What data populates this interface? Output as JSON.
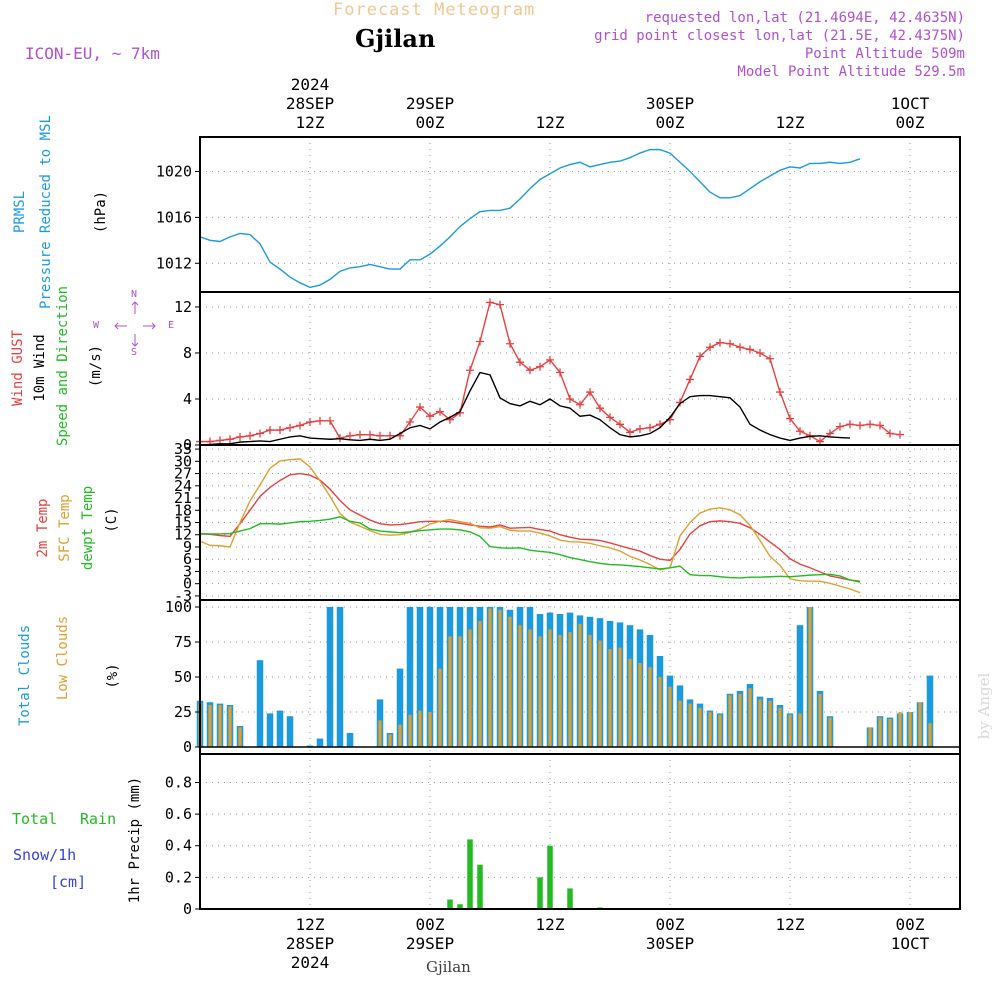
{
  "header": {
    "forecast_title": "Forecast Meteogram",
    "location": "Gjilan",
    "model": "ICON-EU, ~ 7km",
    "requested": "requested lon,lat (21.4694E, 42.4635N)",
    "grid_point": "grid point closest lon,lat (21.5E, 42.4375N)",
    "point_altitude": "Point Altitude 509m",
    "model_altitude": "Model Point Altitude 529.5m",
    "footer_location": "Gjilan",
    "watermark": "by Angel",
    "colors": {
      "title": "#f0c890",
      "location": "#000000",
      "info": "#b050d0",
      "watermark": "#d8d8d8"
    }
  },
  "time_axis": {
    "top_year": "2024",
    "ticks": [
      {
        "hour": 12,
        "top": [
          "28SEP",
          "12Z"
        ],
        "bottom": [
          "12Z",
          "28SEP",
          "2024"
        ]
      },
      {
        "hour": 24,
        "top": [
          "29SEP",
          "00Z"
        ],
        "bottom": [
          "00Z",
          "29SEP"
        ]
      },
      {
        "hour": 36,
        "top": [
          "12Z"
        ],
        "bottom": [
          "12Z"
        ]
      },
      {
        "hour": 48,
        "top": [
          "30SEP",
          "00Z"
        ],
        "bottom": [
          "00Z",
          "30SEP"
        ]
      },
      {
        "hour": 60,
        "top": [
          "12Z"
        ],
        "bottom": [
          "12Z"
        ]
      },
      {
        "hour": 72,
        "top": [
          "1OCT",
          "00Z"
        ],
        "bottom": [
          "00Z",
          "1OCT"
        ]
      }
    ],
    "xlim": [
      1,
      77
    ]
  },
  "panel_labels": {
    "pressure": [
      {
        "text": "PRMSL",
        "color": "#1a9be0"
      },
      {
        "text": "Pressure Reduced to MSL",
        "color": "#1a9be0"
      },
      {
        "text": "(hPa)",
        "color": "#000000"
      }
    ],
    "wind": [
      {
        "text": "Wind GUST",
        "color": "#e84040"
      },
      {
        "text": "10m Wind",
        "color": "#000000"
      },
      {
        "text": "Speed and Direction",
        "color": "#22bb22"
      },
      {
        "text": "(m/s)",
        "color": "#000000"
      }
    ],
    "compass": {
      "n": "N",
      "s": "S",
      "w": "W",
      "e": "E",
      "color": "#b050d0"
    },
    "temp": [
      {
        "text": "2m Temp",
        "color": "#e84040"
      },
      {
        "text": "SFC Temp",
        "color": "#e0a030"
      },
      {
        "text": "dewpt Temp",
        "color": "#22bb22"
      },
      {
        "text": "(C)",
        "color": "#000000"
      }
    ],
    "clouds": [
      {
        "text": "Total Clouds",
        "color": "#1a9be0"
      },
      {
        "text": "Low Clouds",
        "color": "#e0a030"
      },
      {
        "text": "(%)",
        "color": "#000000"
      }
    ],
    "precip": {
      "total": "Total",
      "rain": "Rain",
      "snow": "Snow/1h",
      "cm": "[cm]",
      "axis": "1hr Precip (mm)",
      "rain_color": "#22bb22",
      "snow_color": "#3344dd"
    }
  },
  "chart_data": [
    {
      "type": "line",
      "id": "pressure",
      "ylim": [
        1009.5,
        1023
      ],
      "yticks": [
        1012,
        1016,
        1020
      ],
      "grid": true,
      "series": [
        {
          "color": "#1a9be0",
          "values": [
            1014.3,
            1014.0,
            1013.9,
            1014.3,
            1014.6,
            1014.5,
            1013.7,
            1012.1,
            1011.5,
            1010.8,
            1010.3,
            1009.9,
            1010.1,
            1010.6,
            1011.3,
            1011.6,
            1011.7,
            1011.9,
            1011.7,
            1011.5,
            1011.5,
            1012.3,
            1012.3,
            1012.8,
            1013.5,
            1014.3,
            1015.2,
            1015.9,
            1016.5,
            1016.6,
            1016.6,
            1016.8,
            1017.6,
            1018.5,
            1019.3,
            1019.8,
            1020.3,
            1020.6,
            1020.8,
            1020.4,
            1020.6,
            1020.8,
            1020.9,
            1021.2,
            1021.6,
            1021.9,
            1021.9,
            1021.6,
            1020.8,
            1020.0,
            1019.1,
            1018.2,
            1017.7,
            1017.7,
            1017.9,
            1018.5,
            1019.1,
            1019.6,
            1020.1,
            1020.4,
            1020.3,
            1020.7,
            1020.7,
            1020.8,
            1020.7,
            1020.8,
            1021.1
          ]
        }
      ]
    },
    {
      "type": "line",
      "id": "wind",
      "ylim": [
        0,
        13.3
      ],
      "yticks": [
        0,
        4,
        8,
        12
      ],
      "grid": true,
      "series": [
        {
          "color": "#e84040",
          "markers": "plus",
          "values": [
            0.3,
            0.3,
            0.4,
            0.5,
            0.7,
            0.8,
            1.0,
            1.3,
            1.3,
            1.5,
            1.7,
            2.0,
            2.1,
            2.1,
            0.6,
            0.8,
            0.9,
            0.9,
            0.8,
            0.8,
            0.8,
            2.0,
            3.3,
            2.5,
            2.9,
            2.2,
            2.8,
            6.5,
            9.0,
            12.4,
            12.2,
            8.8,
            7.2,
            6.5,
            6.8,
            7.4,
            6.3,
            4.0,
            3.5,
            4.6,
            3.2,
            2.4,
            1.8,
            1.1,
            1.4,
            1.5,
            1.8,
            2.2,
            3.7,
            5.7,
            7.7,
            8.5,
            8.9,
            8.8,
            8.5,
            8.3,
            8.0,
            7.5,
            4.6,
            2.3,
            1.2,
            0.8,
            0.3,
            1.0,
            1.6,
            1.8,
            1.7,
            1.8,
            1.7,
            1.0,
            0.9
          ]
        },
        {
          "color": "#000000",
          "markers": "none",
          "values": [
            0.0,
            0.05,
            0.1,
            0.1,
            0.25,
            0.3,
            0.35,
            0.3,
            0.5,
            0.7,
            0.8,
            0.6,
            0.55,
            0.5,
            0.55,
            0.45,
            0.4,
            0.5,
            0.4,
            0.5,
            1.0,
            1.5,
            1.7,
            1.4,
            2.0,
            2.4,
            2.9,
            4.7,
            6.3,
            6.1,
            4.1,
            3.6,
            3.4,
            3.8,
            3.5,
            4.0,
            3.4,
            3.2,
            2.5,
            2.6,
            2.2,
            1.5,
            0.9,
            0.7,
            0.8,
            1.0,
            1.5,
            2.4,
            3.6,
            4.2,
            4.3,
            4.3,
            4.2,
            4.1,
            3.3,
            1.8,
            1.3,
            0.9,
            0.6,
            0.4,
            0.6,
            0.75,
            0.8,
            0.7,
            0.65,
            0.6
          ]
        }
      ]
    },
    {
      "type": "line",
      "id": "temperature",
      "ylim": [
        -4,
        34
      ],
      "yticks": [
        -3,
        0,
        3,
        6,
        9,
        12,
        15,
        18,
        21,
        24,
        27,
        30,
        33
      ],
      "grid": true,
      "series": [
        {
          "color": "#e84040",
          "values": [
            12.2,
            12.1,
            11.8,
            11.6,
            14.7,
            18.0,
            21.4,
            23.6,
            25.3,
            26.7,
            27.0,
            26.6,
            25.4,
            23.2,
            20.4,
            18.1,
            16.8,
            15.6,
            14.7,
            14.4,
            14.5,
            14.8,
            15.2,
            15.3,
            15.3,
            15.2,
            14.8,
            14.4,
            14.1,
            13.9,
            14.4,
            13.6,
            13.7,
            13.8,
            13.3,
            12.9,
            12.0,
            11.4,
            10.9,
            10.8,
            10.6,
            10.0,
            9.3,
            8.6,
            8.0,
            6.9,
            6.0,
            5.7,
            8.4,
            12.2,
            14.2,
            15.2,
            15.4,
            15.2,
            14.8,
            13.7,
            12.1,
            10.2,
            8.4,
            6.1,
            4.8,
            3.9,
            2.9,
            1.9,
            1.4,
            0.9,
            0.6
          ]
        },
        {
          "color": "#e0a030",
          "values": [
            10.4,
            9.4,
            9.3,
            9.0,
            15.0,
            20.3,
            24.2,
            28.3,
            30.1,
            30.4,
            30.6,
            28.6,
            25.2,
            21.4,
            17.2,
            15.1,
            14.1,
            13.0,
            12.1,
            11.9,
            12.0,
            12.6,
            13.4,
            14.6,
            15.3,
            15.7,
            15.2,
            14.8,
            13.7,
            13.6,
            14.0,
            13.1,
            12.9,
            12.9,
            12.4,
            11.7,
            10.7,
            10.3,
            10.2,
            9.9,
            9.3,
            8.8,
            8.0,
            6.7,
            5.8,
            4.7,
            3.4,
            3.9,
            11.7,
            15.0,
            17.3,
            18.3,
            18.6,
            18.1,
            16.9,
            14.3,
            10.6,
            6.7,
            4.5,
            1.2,
            0.7,
            0.6,
            0.6,
            0.1,
            -0.6,
            -1.3,
            -2.2
          ]
        },
        {
          "color": "#22bb22",
          "values": [
            12.3,
            12.2,
            12.2,
            12.3,
            12.9,
            13.5,
            14.7,
            14.7,
            14.6,
            14.9,
            15.2,
            15.3,
            15.5,
            15.8,
            16.4,
            15.3,
            14.9,
            13.4,
            12.9,
            12.7,
            12.5,
            12.7,
            13.0,
            13.2,
            13.4,
            13.4,
            13.2,
            12.7,
            11.6,
            9.1,
            8.8,
            8.7,
            8.8,
            8.2,
            7.9,
            7.7,
            7.1,
            6.4,
            5.9,
            5.4,
            5.0,
            4.7,
            4.6,
            4.4,
            4.2,
            3.9,
            3.6,
            3.9,
            4.3,
            2.2,
            2.0,
            2.0,
            1.7,
            1.5,
            1.4,
            1.6,
            1.6,
            1.7,
            1.8,
            1.7,
            1.9,
            2.1,
            2.2,
            2.3,
            1.9,
            0.9,
            0.4
          ]
        }
      ]
    },
    {
      "type": "bar",
      "id": "clouds",
      "ylim": [
        -5,
        105
      ],
      "yticks": [
        0,
        25,
        50,
        75,
        100
      ],
      "grid": true,
      "series": [
        {
          "name": "Total Clouds",
          "color": "#1a9be0",
          "values": [
            33,
            32,
            31,
            30,
            15,
            0,
            62,
            24,
            26,
            22,
            0,
            1,
            6,
            100,
            100,
            10,
            0,
            0,
            34,
            10,
            56,
            100,
            100,
            100,
            100,
            100,
            100,
            100,
            100,
            100,
            100,
            98,
            100,
            100,
            95,
            96,
            95,
            96,
            94,
            93,
            92,
            90,
            89,
            87,
            84,
            80,
            65,
            51,
            44,
            34,
            31,
            26,
            24,
            38,
            40,
            45,
            36,
            35,
            30,
            24,
            87,
            100,
            40,
            22,
            0,
            0,
            0,
            14,
            22,
            21,
            24,
            25,
            32,
            51
          ]
        },
        {
          "name": "Low Clouds",
          "color": "#e0a030",
          "values": [
            31,
            30,
            30,
            29,
            14,
            0,
            0,
            0,
            0,
            0,
            0,
            0,
            0,
            0,
            0,
            0,
            0,
            0,
            19,
            9,
            16,
            23,
            26,
            25,
            56,
            79,
            79,
            84,
            90,
            99,
            98,
            93,
            87,
            84,
            79,
            84,
            80,
            82,
            88,
            80,
            76,
            70,
            71,
            63,
            60,
            57,
            50,
            43,
            33,
            31,
            28,
            25,
            23,
            37,
            38,
            42,
            34,
            33,
            28,
            23,
            24,
            100,
            38,
            21,
            0,
            0,
            0,
            14,
            21,
            20,
            25,
            25,
            32,
            17
          ]
        }
      ]
    },
    {
      "type": "bar",
      "id": "precip",
      "ylim": [
        0,
        0.98
      ],
      "yticks": [
        0,
        0.2,
        0.4,
        0.6,
        0.8
      ],
      "grid": true,
      "series": [
        {
          "color": "#22bb22",
          "values": [
            0,
            0,
            0,
            0,
            0,
            0,
            0,
            0,
            0,
            0,
            0,
            0,
            0,
            0,
            0,
            0,
            0,
            0,
            0,
            0,
            0,
            0,
            0,
            0,
            0,
            0.06,
            0.03,
            0.44,
            0.28,
            0,
            0,
            0,
            0,
            0,
            0.2,
            0.4,
            0,
            0.13,
            0,
            0,
            0.01,
            0,
            0,
            0,
            0,
            0,
            0,
            0,
            0,
            0,
            0,
            0,
            0,
            0,
            0,
            0,
            0,
            0,
            0,
            0,
            0,
            0,
            0,
            0,
            0,
            0,
            0,
            0,
            0,
            0,
            0,
            0,
            0,
            0,
            0,
            0,
            0
          ]
        }
      ]
    }
  ]
}
